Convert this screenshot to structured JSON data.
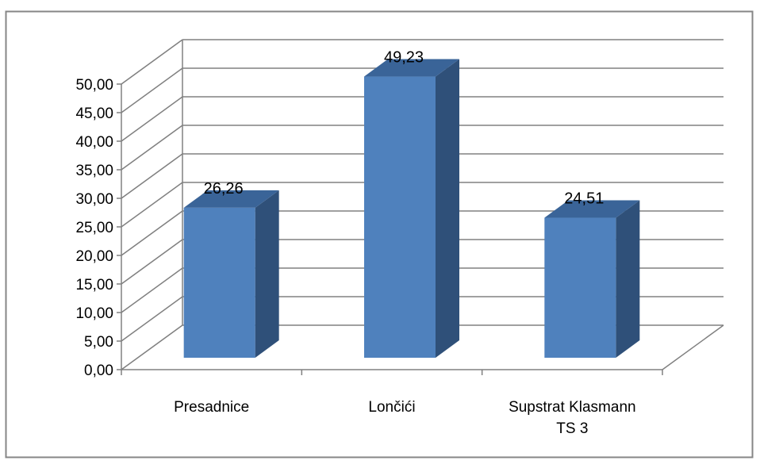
{
  "chart_data": {
    "type": "bar",
    "categories": [
      "Presadnice",
      "Lončići",
      "Supstrat Klasmann TS 3"
    ],
    "values": [
      26.26,
      49.23,
      24.51
    ],
    "data_labels": [
      "26,26",
      "49,23",
      "24,51"
    ],
    "title": "",
    "xlabel": "",
    "ylabel": "",
    "ylim": [
      0,
      50
    ],
    "yticks": [
      "0,00",
      "5,00",
      "10,00",
      "15,00",
      "20,00",
      "25,00",
      "30,00",
      "35,00",
      "40,00",
      "45,00",
      "50,00"
    ],
    "category_label_lines": [
      [
        "Presadnice"
      ],
      [
        "Lončići"
      ],
      [
        "Supstrat Klasmann",
        "TS 3"
      ]
    ],
    "grid": true,
    "legend": "none",
    "style": "3d-column",
    "colors": {
      "bar_front": "#4F81BD",
      "bar_side": "#2F5079",
      "bar_top": "#3A6498",
      "grid": "#808080",
      "frame": "#868686"
    }
  }
}
